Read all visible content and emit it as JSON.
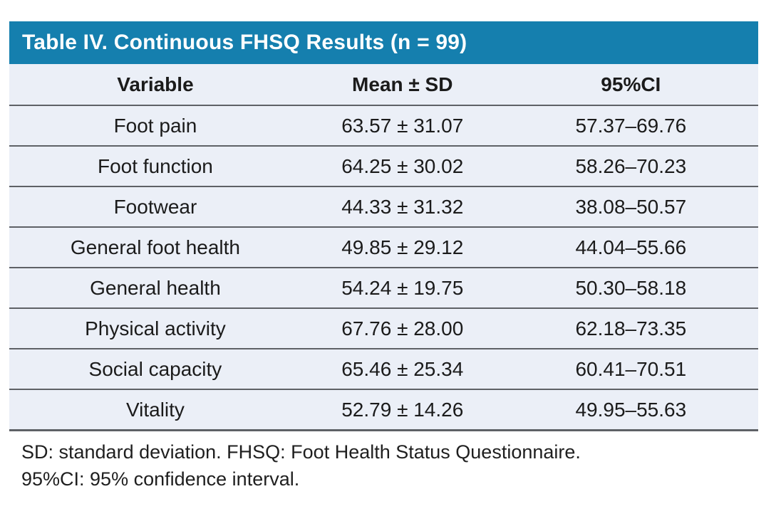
{
  "table": {
    "title": "Table IV. Continuous FHSQ Results (n = 99)",
    "columns": {
      "variable": "Variable",
      "mean_sd": "Mean ± SD",
      "ci": "95%CI"
    },
    "rows": [
      {
        "variable": "Foot pain",
        "mean_sd": "63.57 ± 31.07",
        "ci": "57.37–69.76"
      },
      {
        "variable": "Foot function",
        "mean_sd": "64.25 ± 30.02",
        "ci": "58.26–70.23"
      },
      {
        "variable": "Footwear",
        "mean_sd": "44.33 ± 31.32",
        "ci": "38.08–50.57"
      },
      {
        "variable": "General foot health",
        "mean_sd": "49.85 ± 29.12",
        "ci": "44.04–55.66"
      },
      {
        "variable": "General health",
        "mean_sd": "54.24 ± 19.75",
        "ci": "50.30–58.18"
      },
      {
        "variable": "Physical activity",
        "mean_sd": "67.76 ± 28.00",
        "ci": "62.18–73.35"
      },
      {
        "variable": "Social capacity",
        "mean_sd": "65.46 ± 25.34",
        "ci": "60.41–70.51"
      },
      {
        "variable": "Vitality",
        "mean_sd": "52.79 ± 14.26",
        "ci": "49.95–55.63"
      }
    ],
    "footnotes": [
      "SD: standard deviation. FHSQ: Foot Health Status Questionnaire.",
      "95%CI: 95% confidence interval."
    ]
  },
  "colors": {
    "title_bar_bg": "#157FAE",
    "title_text": "#ffffff",
    "row_bg": "#EBEFF7",
    "separator": "#5e6166",
    "body_text": "#1b1b1b"
  }
}
